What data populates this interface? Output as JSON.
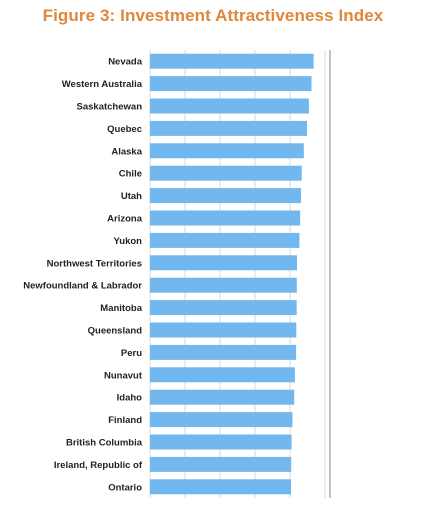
{
  "chart_data": {
    "type": "bar",
    "orientation": "horizontal",
    "title": "Figure 3: Investment Attractiveness Index",
    "categories": [
      "Nevada",
      "Western Australia",
      "Saskatchewan",
      "Quebec",
      "Alaska",
      "Chile",
      "Utah",
      "Arizona",
      "Yukon",
      "Northwest Territories",
      "Newfoundland & Labrador",
      "Manitoba",
      "Queensland",
      "Peru",
      "Nunavut",
      "Idaho",
      "Finland",
      "British Columbia",
      "Ireland, Republic of",
      "Ontario"
    ],
    "values": [
      93.5,
      92.3,
      90.8,
      89.7,
      87.9,
      86.7,
      86.3,
      85.8,
      85.4,
      84.0,
      83.9,
      83.8,
      83.6,
      83.5,
      82.8,
      82.4,
      81.4,
      80.9,
      80.7,
      80.6
    ],
    "xlim": [
      0,
      100
    ],
    "xlabel": "",
    "ylabel": "",
    "grid": true,
    "legend": "none",
    "colors": {
      "bar": "#72b7ee",
      "title": "#e0873a",
      "grid": "#d9d9d9",
      "reference_line": "#9a9a9a"
    }
  }
}
